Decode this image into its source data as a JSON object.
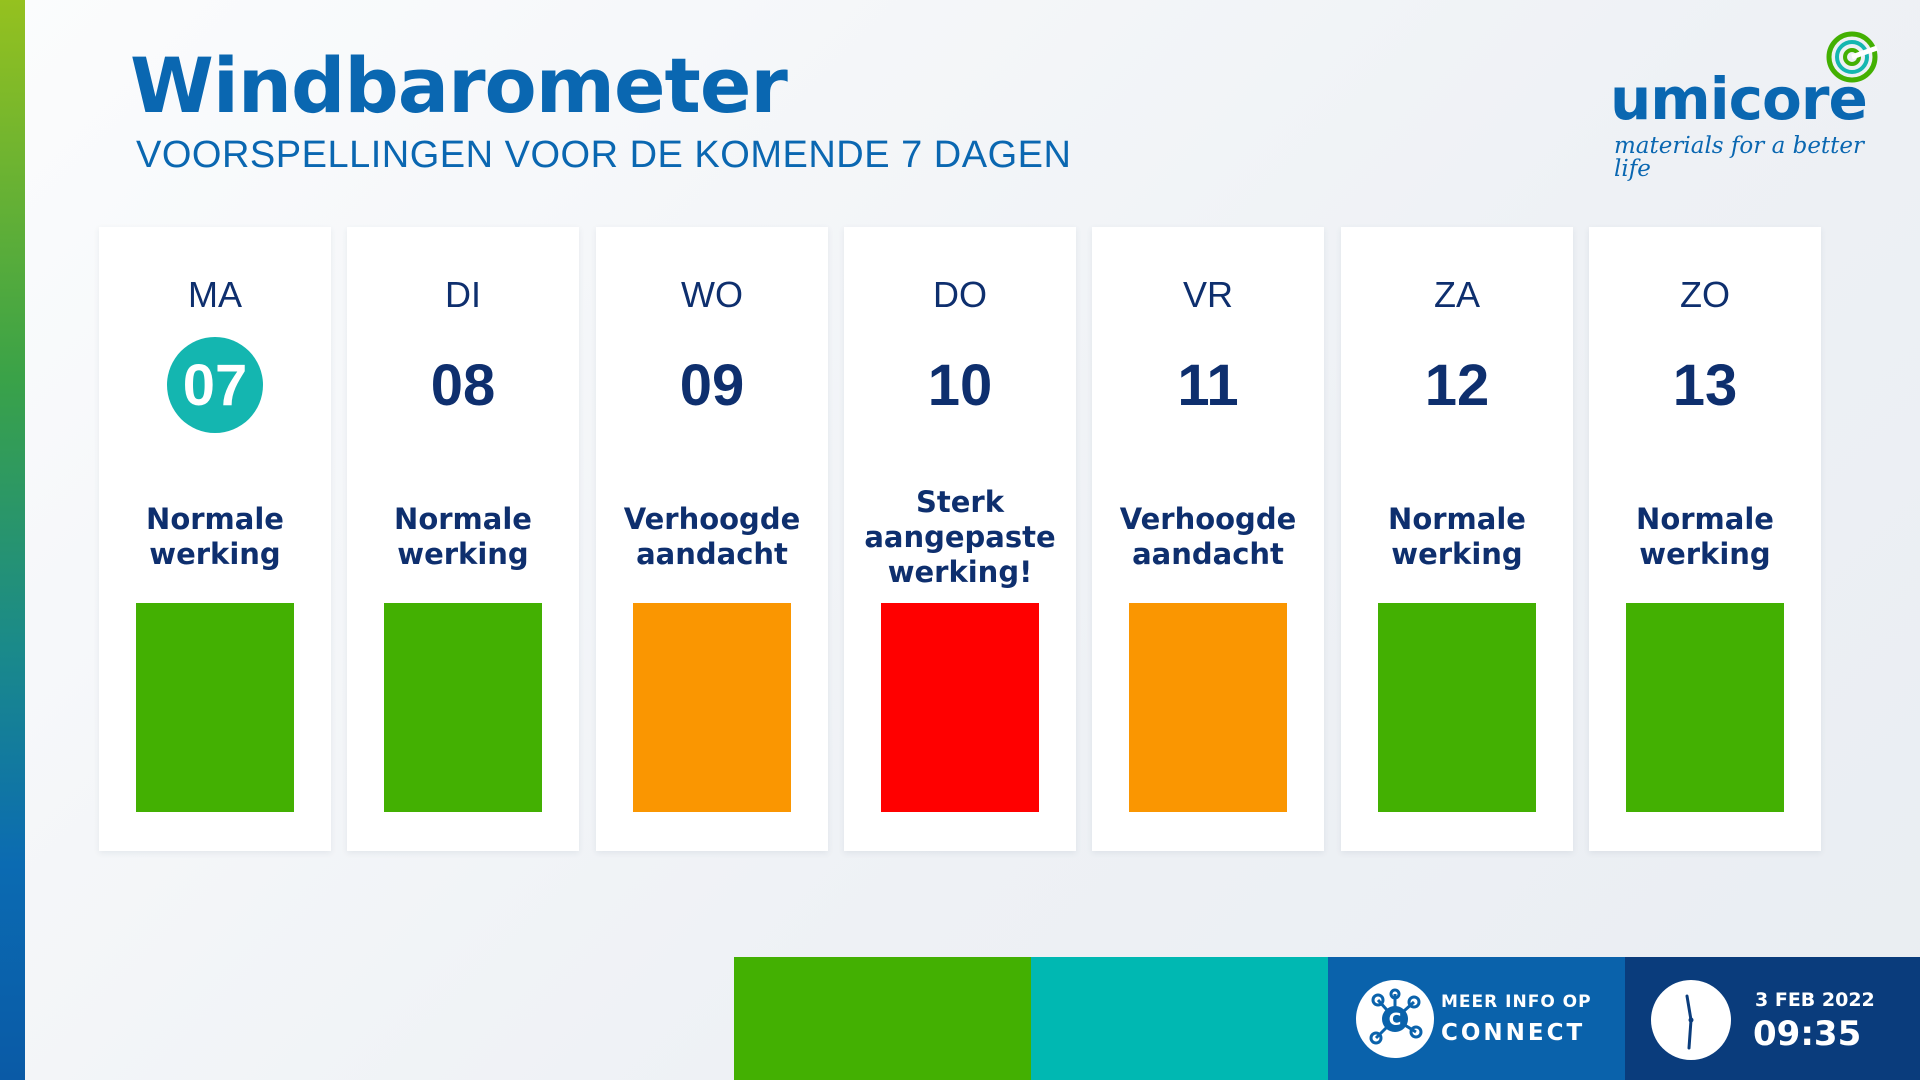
{
  "header": {
    "title": "Windbarometer",
    "subtitle": "VOORSPELLINGEN VOOR DE KOMENDE 7 DAGEN"
  },
  "logo": {
    "wordmark": "umicore",
    "tagline": "materials for a better life",
    "icon": "umicore-swirl-icon"
  },
  "colors": {
    "normal": "#43b002",
    "elevated": "#fa9601",
    "severe": "#ff0000",
    "today_highlight": "#14b6b0",
    "title_blue": "#0a67b1",
    "text_navy": "#0e2f6e"
  },
  "days": [
    {
      "name": "MA",
      "date": "07",
      "today": true,
      "status": "Normale\nwerking",
      "level": "normal"
    },
    {
      "name": "DI",
      "date": "08",
      "today": false,
      "status": "Normale\nwerking",
      "level": "normal"
    },
    {
      "name": "WO",
      "date": "09",
      "today": false,
      "status": "Verhoogde\naandacht",
      "level": "elevated"
    },
    {
      "name": "DO",
      "date": "10",
      "today": false,
      "status": "Sterk\naangepaste\nwerking!",
      "level": "severe"
    },
    {
      "name": "VR",
      "date": "11",
      "today": false,
      "status": "Verhoogde\naandacht",
      "level": "elevated"
    },
    {
      "name": "ZA",
      "date": "12",
      "today": false,
      "status": "Normale\nwerking",
      "level": "normal"
    },
    {
      "name": "ZO",
      "date": "13",
      "today": false,
      "status": "Normale\nwerking",
      "level": "normal"
    }
  ],
  "footer": {
    "info_line1": "MEER INFO OP",
    "info_line2": "CONNECT",
    "connect_icon": "connect-network-icon",
    "clock_icon": "clock-icon",
    "date": "3 FEB 2022",
    "time": "09:35"
  }
}
